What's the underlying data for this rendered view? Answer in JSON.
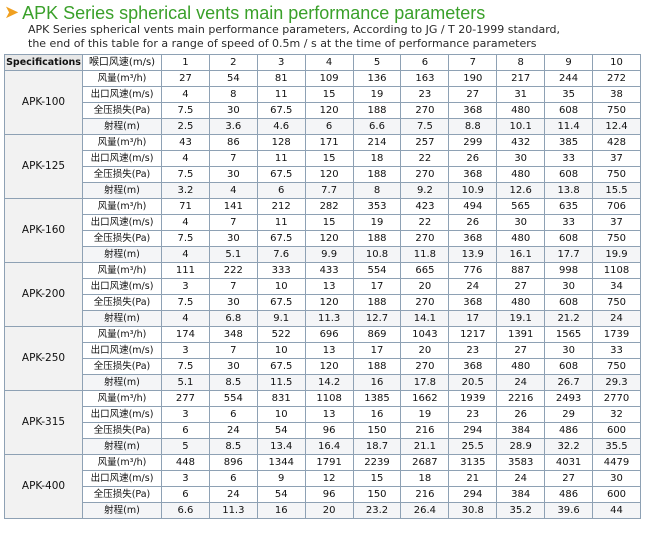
{
  "title": {
    "arrow": "➤",
    "text": "APK Series spherical vents main performance parameters"
  },
  "description": [
    "APK Series spherical vents main performance parameters, According to JG / T 20-1999 standard,",
    "the end of this table for a range of speed of 0.5m / s at the time of performance parameters"
  ],
  "table": {
    "spec_header": "Specifications",
    "nozzle_header": "喉口风速(m/s)",
    "columns": [
      "1",
      "2",
      "3",
      "4",
      "5",
      "6",
      "7",
      "8",
      "9",
      "10"
    ],
    "groups": [
      {
        "model": "APK-100",
        "rows": [
          {
            "label": "风量(m³/h)",
            "values": [
              "27",
              "54",
              "81",
              "109",
              "136",
              "163",
              "190",
              "217",
              "244",
              "272"
            ]
          },
          {
            "label": "出口风速(m/s)",
            "values": [
              "4",
              "8",
              "11",
              "15",
              "19",
              "23",
              "27",
              "31",
              "35",
              "38"
            ]
          },
          {
            "label": "全压损失(Pa)",
            "values": [
              "7.5",
              "30",
              "67.5",
              "120",
              "188",
              "270",
              "368",
              "480",
              "608",
              "750"
            ]
          },
          {
            "label": "射程(m)",
            "values": [
              "2.5",
              "3.6",
              "4.6",
              "6",
              "6.6",
              "7.5",
              "8.8",
              "10.1",
              "11.4",
              "12.4"
            ]
          }
        ]
      },
      {
        "model": "APK-125",
        "rows": [
          {
            "label": "风量(m³/h)",
            "values": [
              "43",
              "86",
              "128",
              "171",
              "214",
              "257",
              "299",
              "432",
              "385",
              "428"
            ]
          },
          {
            "label": "出口风速(m/s)",
            "values": [
              "4",
              "7",
              "11",
              "15",
              "18",
              "22",
              "26",
              "30",
              "33",
              "37"
            ]
          },
          {
            "label": "全压损失(Pa)",
            "values": [
              "7.5",
              "30",
              "67.5",
              "120",
              "188",
              "270",
              "368",
              "480",
              "608",
              "750"
            ]
          },
          {
            "label": "射程(m)",
            "values": [
              "3.2",
              "4",
              "6",
              "7.7",
              "8",
              "9.2",
              "10.9",
              "12.6",
              "13.8",
              "15.5"
            ]
          }
        ]
      },
      {
        "model": "APK-160",
        "rows": [
          {
            "label": "风量(m³/h)",
            "values": [
              "71",
              "141",
              "212",
              "282",
              "353",
              "423",
              "494",
              "565",
              "635",
              "706"
            ]
          },
          {
            "label": "出口风速(m/s)",
            "values": [
              "4",
              "7",
              "11",
              "15",
              "19",
              "22",
              "26",
              "30",
              "33",
              "37"
            ]
          },
          {
            "label": "全压损失(Pa)",
            "values": [
              "7.5",
              "30",
              "67.5",
              "120",
              "188",
              "270",
              "368",
              "480",
              "608",
              "750"
            ]
          },
          {
            "label": "射程(m)",
            "values": [
              "4",
              "5.1",
              "7.6",
              "9.9",
              "10.8",
              "11.8",
              "13.9",
              "16.1",
              "17.7",
              "19.9"
            ]
          }
        ]
      },
      {
        "model": "APK-200",
        "rows": [
          {
            "label": "风量(m³/h)",
            "values": [
              "111",
              "222",
              "333",
              "433",
              "554",
              "665",
              "776",
              "887",
              "998",
              "1108"
            ]
          },
          {
            "label": "出口风速(m/s)",
            "values": [
              "3",
              "7",
              "10",
              "13",
              "17",
              "20",
              "24",
              "27",
              "30",
              "34"
            ]
          },
          {
            "label": "全压损失(Pa)",
            "values": [
              "7.5",
              "30",
              "67.5",
              "120",
              "188",
              "270",
              "368",
              "480",
              "608",
              "750"
            ]
          },
          {
            "label": "射程(m)",
            "values": [
              "4",
              "6.8",
              "9.1",
              "11.3",
              "12.7",
              "14.1",
              "17",
              "19.1",
              "21.2",
              "24"
            ]
          }
        ]
      },
      {
        "model": "APK-250",
        "rows": [
          {
            "label": "风量(m³/h)",
            "values": [
              "174",
              "348",
              "522",
              "696",
              "869",
              "1043",
              "1217",
              "1391",
              "1565",
              "1739"
            ]
          },
          {
            "label": "出口风速(m/s)",
            "values": [
              "3",
              "7",
              "10",
              "13",
              "17",
              "20",
              "23",
              "27",
              "30",
              "33"
            ]
          },
          {
            "label": "全压损失(Pa)",
            "values": [
              "7.5",
              "30",
              "67.5",
              "120",
              "188",
              "270",
              "368",
              "480",
              "608",
              "750"
            ]
          },
          {
            "label": "射程(m)",
            "values": [
              "5.1",
              "8.5",
              "11.5",
              "14.2",
              "16",
              "17.8",
              "20.5",
              "24",
              "26.7",
              "29.3"
            ]
          }
        ]
      },
      {
        "model": "APK-315",
        "rows": [
          {
            "label": "风量(m³/h)",
            "values": [
              "277",
              "554",
              "831",
              "1108",
              "1385",
              "1662",
              "1939",
              "2216",
              "2493",
              "2770"
            ]
          },
          {
            "label": "出口风速(m/s)",
            "values": [
              "3",
              "6",
              "10",
              "13",
              "16",
              "19",
              "23",
              "26",
              "29",
              "32"
            ]
          },
          {
            "label": "全压损失(Pa)",
            "values": [
              "6",
              "24",
              "54",
              "96",
              "150",
              "216",
              "294",
              "384",
              "486",
              "600"
            ]
          },
          {
            "label": "射程(m)",
            "values": [
              "5",
              "8.5",
              "13.4",
              "16.4",
              "18.7",
              "21.1",
              "25.5",
              "28.9",
              "32.2",
              "35.5"
            ]
          }
        ]
      },
      {
        "model": "APK-400",
        "rows": [
          {
            "label": "风量(m³/h)",
            "values": [
              "448",
              "896",
              "1344",
              "1791",
              "2239",
              "2687",
              "3135",
              "3583",
              "4031",
              "4479"
            ]
          },
          {
            "label": "出口风速(m/s)",
            "values": [
              "3",
              "6",
              "9",
              "12",
              "15",
              "18",
              "21",
              "24",
              "27",
              "30"
            ]
          },
          {
            "label": "全压损失(Pa)",
            "values": [
              "6",
              "24",
              "54",
              "96",
              "150",
              "216",
              "294",
              "384",
              "486",
              "600"
            ]
          },
          {
            "label": "射程(m)",
            "values": [
              "6.6",
              "11.3",
              "16",
              "20",
              "23.2",
              "26.4",
              "30.8",
              "35.2",
              "39.6",
              "44"
            ]
          }
        ]
      }
    ]
  }
}
